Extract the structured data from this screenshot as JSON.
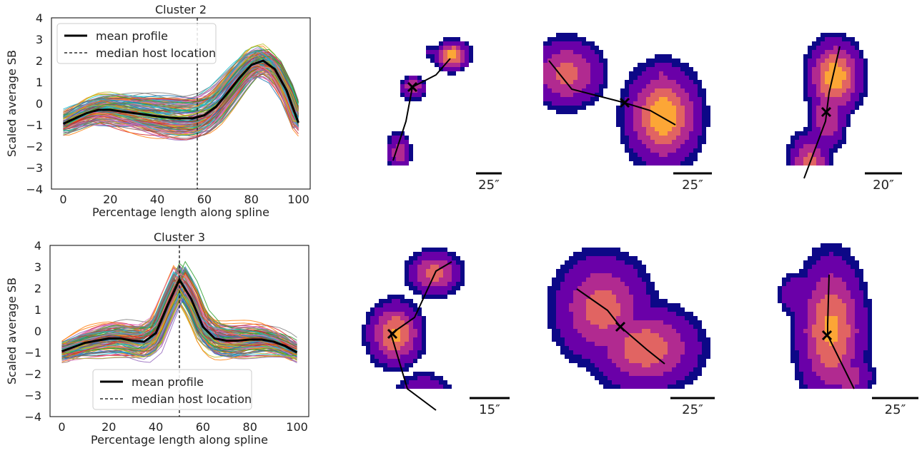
{
  "chart_data": [
    {
      "type": "line",
      "title": "Cluster 2",
      "xlabel": "Percentage length along spline",
      "ylabel": "Scaled average SB",
      "xlim": [
        -5,
        105
      ],
      "ylim": [
        -4,
        4
      ],
      "xticks": [
        "0",
        "20",
        "40",
        "60",
        "80",
        "100"
      ],
      "yticks": [
        "4",
        "3",
        "2",
        "1",
        "0",
        "−1",
        "−2",
        "−3",
        "−4"
      ],
      "legend_position": "upper-left",
      "legend": [
        "mean profile",
        "median host location"
      ],
      "median_host_location": 57,
      "series": [
        {
          "name": "mean profile",
          "x": [
            0,
            5,
            10,
            15,
            20,
            25,
            30,
            35,
            40,
            45,
            50,
            55,
            60,
            65,
            70,
            75,
            80,
            85,
            90,
            95,
            100
          ],
          "values": [
            -0.95,
            -0.7,
            -0.45,
            -0.3,
            -0.3,
            -0.38,
            -0.45,
            -0.52,
            -0.6,
            -0.66,
            -0.7,
            -0.7,
            -0.55,
            -0.15,
            0.5,
            1.2,
            1.8,
            2.0,
            1.6,
            0.6,
            -0.9
          ]
        }
      ]
    },
    {
      "type": "line",
      "title": "Cluster 3",
      "xlabel": "Percentage length along spline",
      "ylabel": "Scaled average SB",
      "xlim": [
        -5,
        105
      ],
      "ylim": [
        -4,
        4
      ],
      "xticks": [
        "0",
        "20",
        "40",
        "60",
        "80",
        "100"
      ],
      "yticks": [
        "4",
        "3",
        "2",
        "1",
        "0",
        "−1",
        "−2",
        "−3",
        "−4"
      ],
      "legend_position": "lower-center",
      "legend": [
        "mean profile",
        "median host location"
      ],
      "median_host_location": 50,
      "series": [
        {
          "name": "mean profile",
          "x": [
            0,
            5,
            10,
            15,
            20,
            25,
            30,
            35,
            40,
            45,
            50,
            55,
            60,
            65,
            70,
            75,
            80,
            85,
            90,
            95,
            100
          ],
          "values": [
            -0.95,
            -0.75,
            -0.55,
            -0.45,
            -0.35,
            -0.35,
            -0.45,
            -0.5,
            -0.1,
            1.2,
            2.4,
            1.5,
            0.2,
            -0.35,
            -0.45,
            -0.45,
            -0.4,
            -0.4,
            -0.5,
            -0.7,
            -1.0
          ]
        }
      ]
    }
  ],
  "scale_bars": [
    "25″",
    "25″",
    "20″",
    "15″",
    "25″",
    "25″"
  ],
  "colors": {
    "mean_profile": "#000000",
    "median_line": "#000000",
    "palette": [
      "#1f77b4",
      "#ff7f0e",
      "#2ca02c",
      "#d62728",
      "#9467bd",
      "#8c564b",
      "#e377c2",
      "#7f7f7f",
      "#bcbd22",
      "#17becf"
    ],
    "colormap": [
      "#0d0887",
      "#6a00a8",
      "#b12a90",
      "#e16462",
      "#fca636",
      "#f0f921"
    ]
  }
}
